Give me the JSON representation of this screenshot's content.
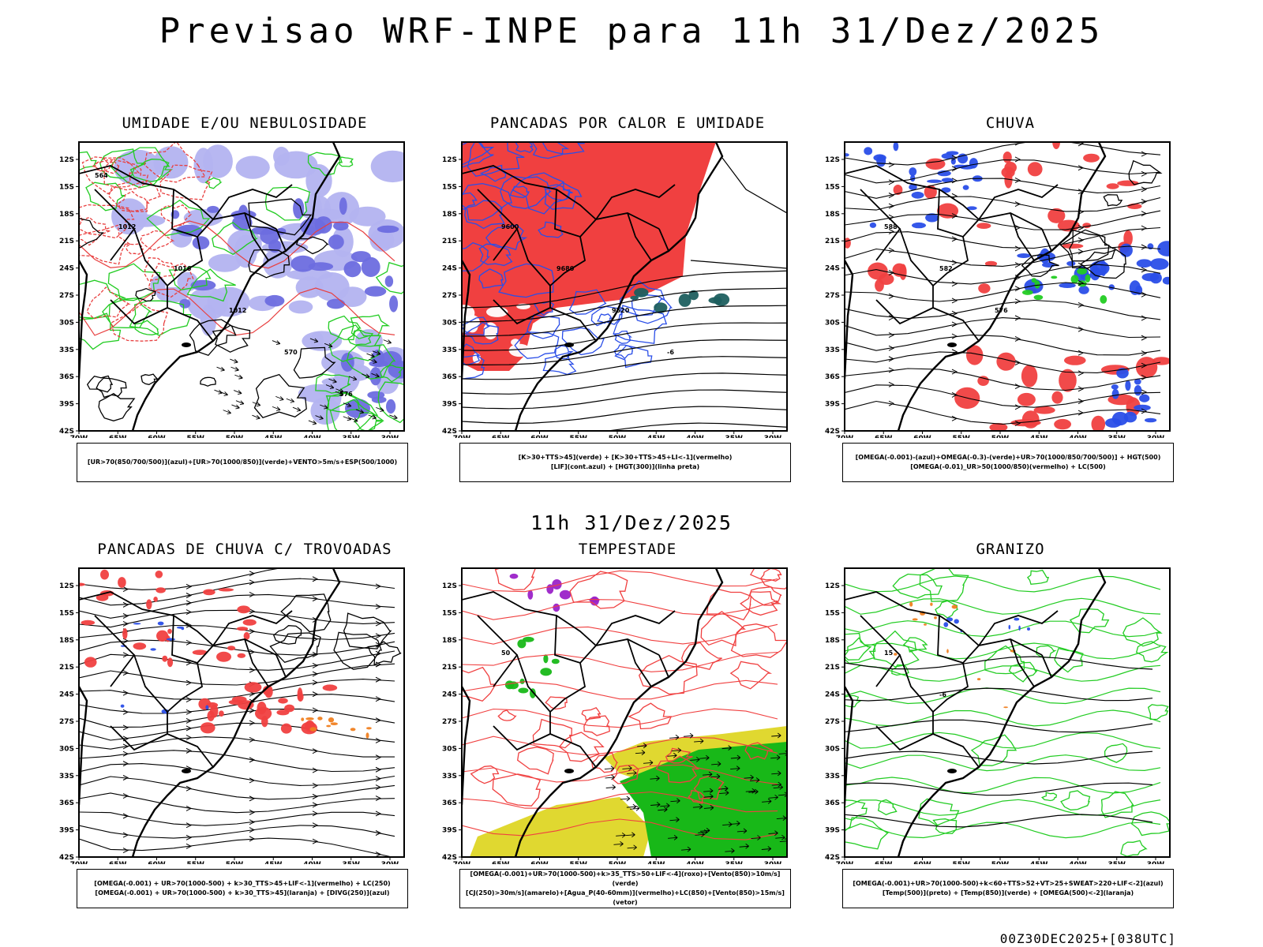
{
  "title": "Previsao WRF-INPE  para 11h 31/Dez/2025",
  "mid_title": "11h 31/Dez/2025",
  "footer": "00Z30DEC2025+[038UTC]",
  "axes": {
    "lat": [
      "12S",
      "15S",
      "18S",
      "21S",
      "24S",
      "27S",
      "30S",
      "33S",
      "36S",
      "39S",
      "42S"
    ],
    "lon": [
      "70W",
      "65W",
      "60W",
      "55W",
      "50W",
      "45W",
      "40W",
      "35W",
      "30W"
    ]
  },
  "panels": [
    {
      "title": "UMIDADE E/OU NEBULOSIDADE",
      "legend": [
        "[UR>70(850/700/500)](azul)+[UR>70(1000/850)](verde)+VENTO>5m/s+ESP(500/1000)"
      ],
      "colors": {
        "a": "#b3b3f0",
        "b": "#6d6ddf",
        "c": "#22cc22",
        "d": "#e84040"
      },
      "labels": [
        "1012",
        "1016",
        "1012",
        "570",
        "576",
        "564"
      ]
    },
    {
      "title": "PANCADAS POR CALOR E UMIDADE",
      "legend": [
        "[K>30+TTS>45](verde) + [K>30+TTS>45+LI<-1](vermelho)",
        "[LIF](cont.azul) + [HGT(300)](linha preta)"
      ],
      "colors": {
        "a": "#f04040",
        "b": "#2a4ee8",
        "c": "#1e5f5f"
      },
      "labels": [
        "9600",
        "9680",
        "9520",
        "-6"
      ]
    },
    {
      "title": "CHUVA",
      "legend": [
        "[OMEGA(-0.001)-(azul)+OMEGA(-0.3)-(verde)+UR>70(1000/850/700/500)] + HGT(500)",
        "[OMEGA(-0.01)_UR>50(1000/850)(vermelho) + LC(500)"
      ],
      "colors": {
        "a": "#f04040",
        "b": "#2a4ee8",
        "c": "#22cc22"
      },
      "labels": [
        "588",
        "582",
        "576"
      ]
    },
    {
      "title": "PANCADAS DE CHUVA C/ TROVOADAS",
      "legend": [
        "[OMEGA(-0.001) + UR>70(1000-500) + k>30_TTS>45+LIF<-1](vermelho) + LC(250)",
        "[OMEGA(-0.001) + UR>70(1000-500) + k>30_TTS>45](laranja) + [DIVG(250)](azul)"
      ],
      "colors": {
        "a": "#f04040",
        "b": "#2a4ee8",
        "c": "#f08020"
      },
      "labels": []
    },
    {
      "title": "TEMPESTADE",
      "legend": [
        "[OMEGA(-0.001)+UR>70(1000-500)+k>35_TTS>50+LIF<-4](roxo)+[Vento(850)>10m/s](verde)",
        "[CJ(250)>30m/s](amarelo)+[Agua_P(40-60mm)](vermelho)+LC(850)+[Vento(850)>15m/s](vetor)"
      ],
      "colors": {
        "a": "#e0d830",
        "b": "#18b818",
        "c": "#f04040",
        "d": "#9b22c8"
      },
      "labels": [
        "50"
      ]
    },
    {
      "title": "GRANIZO",
      "legend": [
        "[OMEGA(-0.001)+UR>70(1000-500)+k<60+TTS>52+VT>25+SWEAT>220+LIF<-2](azul)",
        "[Temp(500)](preto) + [Temp(850)](verde) + [OMEGA(500)<-2](laranja)"
      ],
      "colors": {
        "a": "#22cc22",
        "b": "#f08020",
        "c": "#2a4ee8"
      },
      "labels": [
        "15",
        "-6"
      ]
    }
  ]
}
